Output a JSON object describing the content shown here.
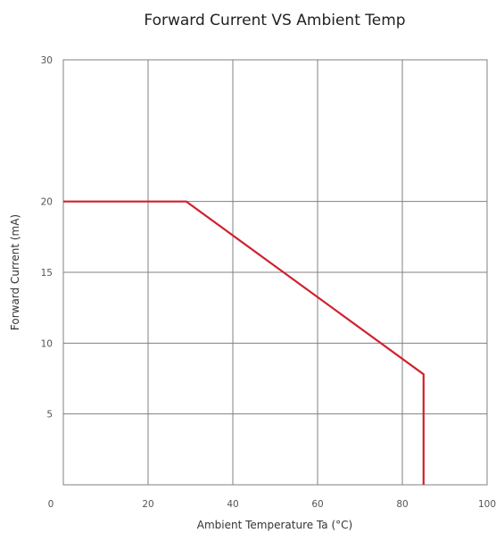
{
  "chart_data": {
    "type": "line",
    "title": "Forward Current VS Ambient Temp",
    "xlabel": "Ambient Temperature Ta (°C)",
    "ylabel": "Forward Current (mA)",
    "xlim": [
      0,
      100
    ],
    "ylim": [
      0,
      30
    ],
    "x_ticks": [
      0,
      20,
      40,
      60,
      80,
      100
    ],
    "x_tick_labels": [
      "0",
      "20",
      "40",
      "60",
      "80",
      "100"
    ],
    "y_ticks": [
      5,
      10,
      15,
      20,
      30
    ],
    "y_tick_labels": [
      "5",
      "10",
      "15",
      "20",
      "30"
    ],
    "grid": true,
    "series": [
      {
        "color": "#d0202e",
        "points": [
          {
            "x": 0,
            "y": 20
          },
          {
            "x": 29,
            "y": 20
          },
          {
            "x": 85,
            "y": 7.8
          },
          {
            "x": 85,
            "y": 0
          }
        ]
      }
    ]
  }
}
